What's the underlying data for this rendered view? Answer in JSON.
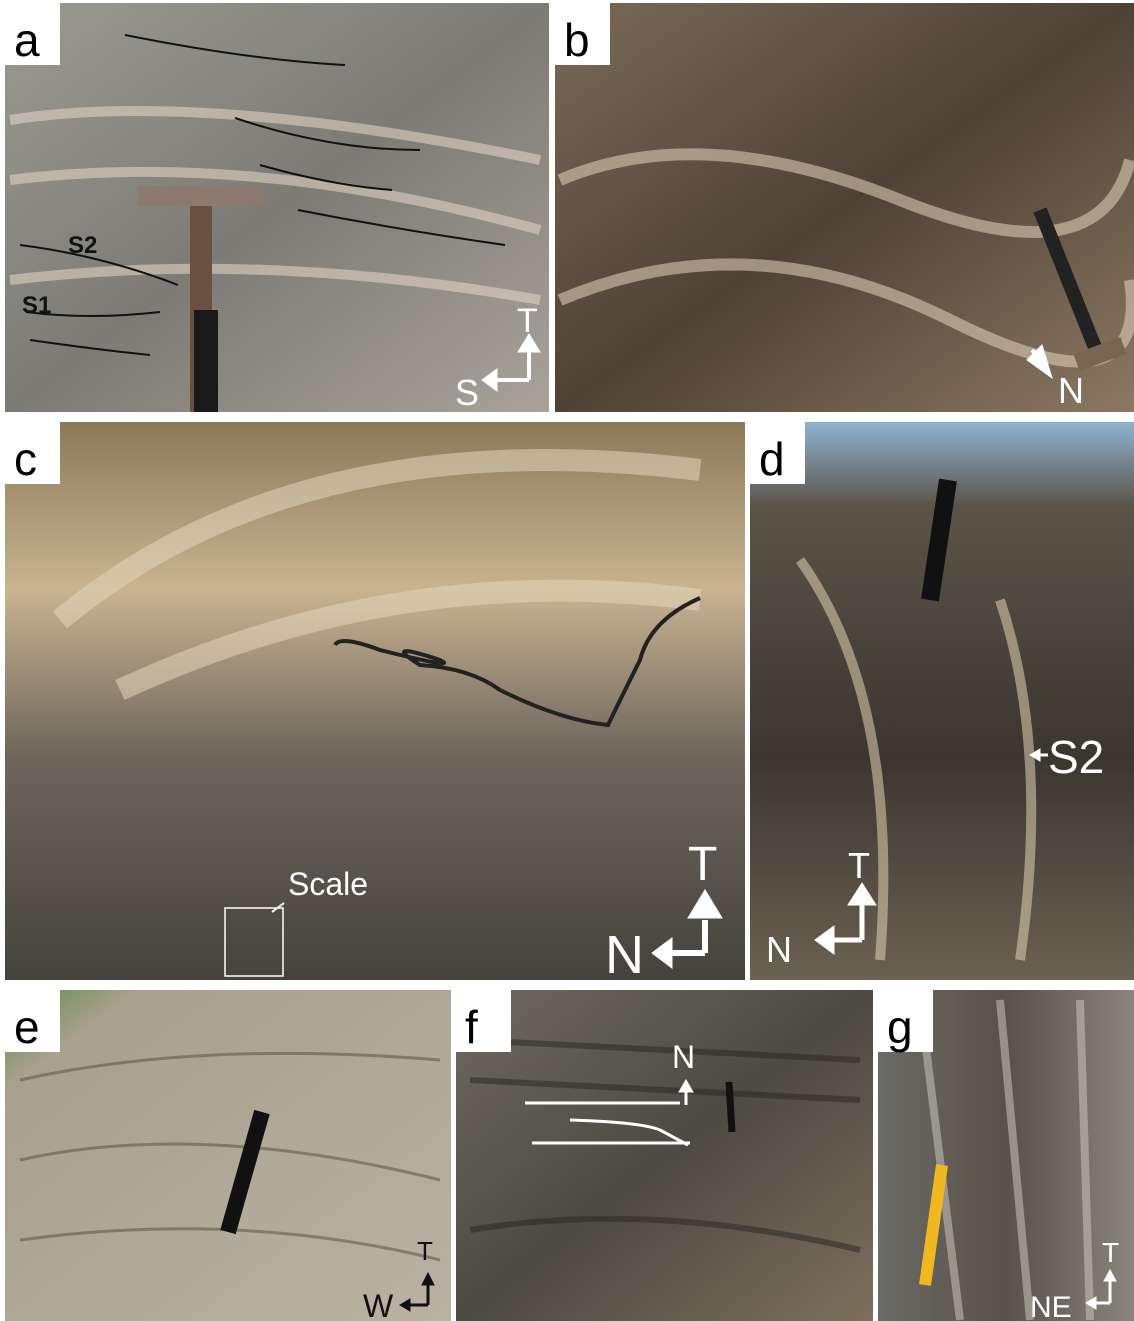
{
  "panels": [
    {
      "label": "a",
      "annotations": [
        "S2",
        "S1",
        "T",
        "S"
      ]
    },
    {
      "label": "b",
      "annotations": [
        "N"
      ]
    },
    {
      "label": "c",
      "annotations": [
        "Scale",
        "T",
        "N"
      ]
    },
    {
      "label": "d",
      "annotations": [
        "S2",
        "T",
        "N"
      ]
    },
    {
      "label": "e",
      "annotations": [
        "T",
        "W"
      ]
    },
    {
      "label": "f",
      "annotations": [
        "N"
      ]
    },
    {
      "label": "g",
      "annotations": [
        "T",
        "NE"
      ]
    }
  ]
}
